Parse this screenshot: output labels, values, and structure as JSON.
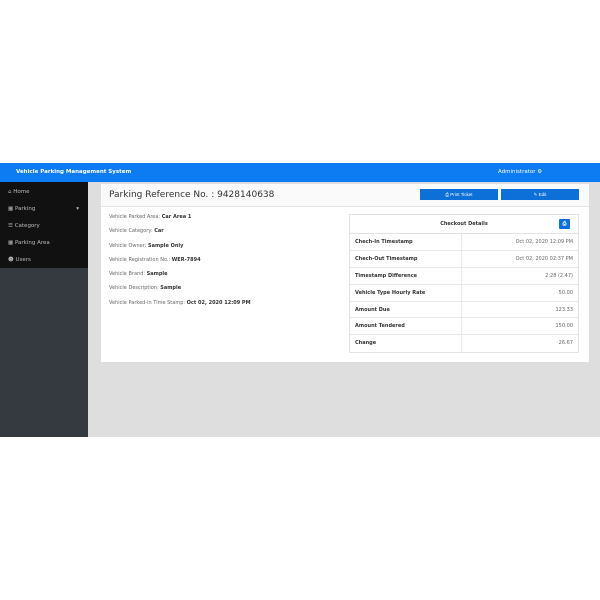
{
  "navbar": {
    "brand": "Vehicle Parking Management System",
    "user": "Administrator",
    "user_icon": "gear-icon"
  },
  "sidebar": {
    "items": [
      {
        "label": "Home",
        "icon": "home-icon"
      },
      {
        "label": "Parking",
        "icon": "parking-icon",
        "caret": "▾"
      },
      {
        "label": "Category",
        "icon": "list-icon"
      },
      {
        "label": "Parking Area",
        "icon": "map-icon"
      },
      {
        "label": "Users",
        "icon": "users-icon"
      }
    ]
  },
  "card": {
    "title": "Parking Reference No. : 9428140638",
    "print_label": "Print Ticket",
    "edit_label": "Edit"
  },
  "info": [
    {
      "label": "Vehicle Parked Area:",
      "value": "Car Area 1"
    },
    {
      "label": "Vehicle Category:",
      "value": "Car"
    },
    {
      "label": "Vehicle Owner:",
      "value": "Sample Only"
    },
    {
      "label": "Vehicle Registration No.:",
      "value": "WER-7894"
    },
    {
      "label": "Vehicle Brand:",
      "value": "Sample"
    },
    {
      "label": "Vehicle Description:",
      "value": "Sample"
    },
    {
      "label": "Vehicle Parked-in Time Stamp:",
      "value": "Oct 02, 2020 12:09 PM"
    }
  ],
  "checkout": {
    "title": "Checkout Details",
    "rows": [
      {
        "k": "Chech-In Timestamp",
        "v": "Oct 02, 2020 12:09 PM"
      },
      {
        "k": "Chech-Out Timestamp",
        "v": "Oct 02, 2020 02:37 PM"
      },
      {
        "k": "Timestamp Difference",
        "v": "2:28 (2.47)"
      },
      {
        "k": "Vehicle Type Hourly Rate",
        "v": "50.00"
      },
      {
        "k": "Amount Due",
        "v": "123.33"
      },
      {
        "k": "Amount Tendered",
        "v": "150.00"
      },
      {
        "k": "Change",
        "v": "26.67"
      }
    ]
  }
}
